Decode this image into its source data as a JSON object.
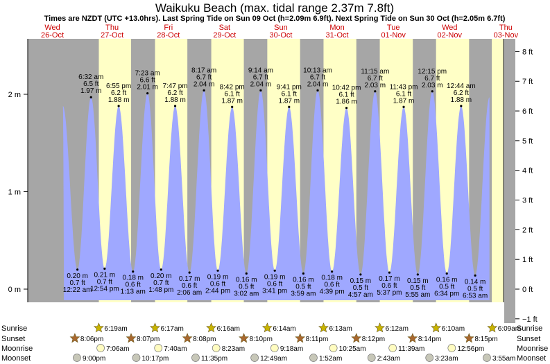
{
  "title": "Waikuku Beach (max. tidal range 2.37m 7.8ft)",
  "subtitle": "Times are NZDT (UTC +13.0hrs). Last Spring Tide on Sun 09 Oct (h=2.09m 6.9ft). Next Spring Tide on Sun 30 Oct (h=2.05m 6.7ft)",
  "colors": {
    "water": "#9fa8ff",
    "day": "#ffffc6",
    "night": "#a6a6a6",
    "day_label": "#cc0000",
    "sun_star": "#c8b400",
    "sunset_star": "#a8682f",
    "moon": "#fffcc0",
    "moonset": "#c7c7b8"
  },
  "days": [
    {
      "name": "Wed",
      "date": "26-Oct"
    },
    {
      "name": "Thu",
      "date": "27-Oct"
    },
    {
      "name": "Fri",
      "date": "28-Oct"
    },
    {
      "name": "Sat",
      "date": "29-Oct"
    },
    {
      "name": "Sun",
      "date": "30-Oct"
    },
    {
      "name": "Mon",
      "date": "31-Oct"
    },
    {
      "name": "Tue",
      "date": "01-Nov"
    },
    {
      "name": "Wed",
      "date": "02-Nov"
    },
    {
      "name": "Thu",
      "date": "03-Nov"
    }
  ],
  "chart_data": {
    "type": "area",
    "ylabel": "",
    "ylim_m": [
      -0.22,
      2.58
    ],
    "y_ticks_m": [
      "0 m",
      "1 m",
      "2 m"
    ],
    "y_ticks_ft": [
      "−1 ft",
      "0 ft",
      "1 ft",
      "2 ft",
      "3 ft",
      "4 ft",
      "5 ft",
      "6 ft",
      "7 ft",
      "8 ft"
    ],
    "tides": [
      {
        "t": 15.0,
        "h": 1.88,
        "type": "high",
        "labels": []
      },
      {
        "t": 21.2,
        "h": 0.2,
        "type": "low",
        "labels": [
          "0.20 m",
          "0.7 ft",
          "12:22 am"
        ]
      },
      {
        "t": 27.0,
        "h": 1.97,
        "type": "high",
        "labels": [
          "6:32 am",
          "6.5 ft",
          "1.97 m"
        ]
      },
      {
        "t": 32.8,
        "h": 0.21,
        "type": "low",
        "labels": [
          "0.21 m",
          "0.7 ft",
          "12:54 pm"
        ]
      },
      {
        "t": 38.8,
        "h": 1.88,
        "type": "high",
        "labels": [
          "6:55 pm",
          "6.2 ft",
          "1.88 m"
        ]
      },
      {
        "t": 44.9,
        "h": 0.18,
        "type": "low",
        "labels": [
          "0.18 m",
          "0.6 ft",
          "1:13 am"
        ]
      },
      {
        "t": 51.1,
        "h": 2.01,
        "type": "high",
        "labels": [
          "7:23 am",
          "6.6 ft",
          "2.01 m"
        ]
      },
      {
        "t": 56.9,
        "h": 0.2,
        "type": "low",
        "labels": [
          "0.20 m",
          "0.7 ft",
          "1:48 pm"
        ]
      },
      {
        "t": 62.9,
        "h": 1.88,
        "type": "high",
        "labels": [
          "7:47 pm",
          "6.2 ft",
          "1.88 m"
        ]
      },
      {
        "t": 69.0,
        "h": 0.17,
        "type": "low",
        "labels": [
          "0.17 m",
          "0.6 ft",
          "2:06 am"
        ]
      },
      {
        "t": 75.2,
        "h": 2.04,
        "type": "high",
        "labels": [
          "8:17 am",
          "6.7 ft",
          "2.04 m"
        ]
      },
      {
        "t": 81.1,
        "h": 0.19,
        "type": "low",
        "labels": [
          "0.19 m",
          "0.6 ft",
          "2:44 pm"
        ]
      },
      {
        "t": 87.2,
        "h": 1.87,
        "type": "high",
        "labels": [
          "8:42 pm",
          "6.1 ft",
          "1.87 m"
        ]
      },
      {
        "t": 93.3,
        "h": 0.16,
        "type": "low",
        "labels": [
          "0.16 m",
          "0.5 ft",
          "3:02 am"
        ]
      },
      {
        "t": 99.4,
        "h": 2.04,
        "type": "high",
        "labels": [
          "9:14 am",
          "6.7 ft",
          "2.04 m"
        ]
      },
      {
        "t": 105.4,
        "h": 0.19,
        "type": "low",
        "labels": [
          "0.19 m",
          "0.6 ft",
          "3:41 pm"
        ]
      },
      {
        "t": 111.5,
        "h": 1.87,
        "type": "high",
        "labels": [
          "9:41 pm",
          "6.1 ft",
          "1.87 m"
        ]
      },
      {
        "t": 117.6,
        "h": 0.16,
        "type": "low",
        "labels": [
          "0.16 m",
          "0.5 ft",
          "3:59 am"
        ]
      },
      {
        "t": 123.7,
        "h": 2.04,
        "type": "high",
        "labels": [
          "10:13 am",
          "6.7 ft",
          "2.04 m"
        ]
      },
      {
        "t": 129.8,
        "h": 0.18,
        "type": "low",
        "labels": [
          "0.18 m",
          "0.6 ft",
          "4:39 pm"
        ]
      },
      {
        "t": 136.0,
        "h": 1.86,
        "type": "high",
        "labels": [
          "10:42 pm",
          "6.1 ft",
          "1.86 m"
        ]
      },
      {
        "t": 142.0,
        "h": 0.15,
        "type": "low",
        "labels": [
          "0.15 m",
          "0.5 ft",
          "4:57 am"
        ]
      },
      {
        "t": 148.2,
        "h": 2.03,
        "type": "high",
        "labels": [
          "11:15 am",
          "6.7 ft",
          "2.03 m"
        ]
      },
      {
        "t": 154.3,
        "h": 0.17,
        "type": "low",
        "labels": [
          "0.17 m",
          "0.6 ft",
          "5:37 pm"
        ]
      },
      {
        "t": 160.4,
        "h": 1.87,
        "type": "high",
        "labels": [
          "11:43 pm",
          "6.1 ft",
          "1.87 m"
        ]
      },
      {
        "t": 166.4,
        "h": 0.15,
        "type": "low",
        "labels": [
          "0.15 m",
          "0.5 ft",
          "5:55 am"
        ]
      },
      {
        "t": 172.6,
        "h": 2.03,
        "type": "high",
        "labels": [
          "12:15 pm",
          "6.7 ft",
          "2.03 m"
        ]
      },
      {
        "t": 178.8,
        "h": 0.16,
        "type": "low",
        "labels": [
          "0.16 m",
          "0.5 ft",
          "6:34 pm"
        ]
      },
      {
        "t": 184.9,
        "h": 1.88,
        "type": "high",
        "labels": [
          "12:44 am",
          "6.2 ft",
          "1.88 m"
        ]
      },
      {
        "t": 190.9,
        "h": 0.14,
        "type": "low",
        "labels": [
          "0.14 m",
          "0.5 ft",
          "6:53 am"
        ]
      },
      {
        "t": 197.0,
        "h": 1.97,
        "type": "high",
        "labels": []
      }
    ],
    "night_bands": [
      [
        -4.0,
        30.3
      ],
      [
        44.1,
        54.3
      ],
      [
        68.1,
        78.3
      ],
      [
        92.2,
        102.2
      ],
      [
        116.2,
        126.2
      ],
      [
        140.2,
        150.2
      ],
      [
        164.3,
        174.2
      ],
      [
        188.3,
        198.0
      ]
    ],
    "first_night_start": 20.1
  },
  "events": {
    "sunrise": {
      "label": "Sunrise",
      "right_label": "Sunrise",
      "items": [
        {
          "t": 30.3,
          "text": "6:19am"
        },
        {
          "t": 54.3,
          "text": "6:17am"
        },
        {
          "t": 78.3,
          "text": "6:16am"
        },
        {
          "t": 102.2,
          "text": "6:14am"
        },
        {
          "t": 126.2,
          "text": "6:13am"
        },
        {
          "t": 150.2,
          "text": "6:12am"
        },
        {
          "t": 174.2,
          "text": "6:10am"
        },
        {
          "t": 198.2,
          "text": "6:09am"
        }
      ]
    },
    "sunset": {
      "label": "Sunset",
      "right_label": "Sunset",
      "items": [
        {
          "t": 20.1,
          "text": "8:06pm"
        },
        {
          "t": 44.1,
          "text": "8:07pm"
        },
        {
          "t": 68.1,
          "text": "8:08pm"
        },
        {
          "t": 92.2,
          "text": "8:10pm"
        },
        {
          "t": 116.2,
          "text": "8:11pm"
        },
        {
          "t": 140.2,
          "text": "8:12pm"
        },
        {
          "t": 164.2,
          "text": "8:14pm"
        },
        {
          "t": 188.3,
          "text": "8:15pm"
        }
      ]
    },
    "moonrise": {
      "label": "Moonrise",
      "right_label": "Moonrise",
      "items": [
        {
          "t": 31.1,
          "text": "7:06am"
        },
        {
          "t": 55.7,
          "text": "7:40am"
        },
        {
          "t": 80.4,
          "text": "8:23am"
        },
        {
          "t": 105.3,
          "text": "9:18am"
        },
        {
          "t": 130.4,
          "text": "10:25am"
        },
        {
          "t": 155.7,
          "text": "11:39am"
        },
        {
          "t": 180.9,
          "text": "12:56pm"
        }
      ]
    },
    "moonset": {
      "label": "Moonset",
      "right_label": "Moonset",
      "items": [
        {
          "t": 21.0,
          "text": "9:00pm"
        },
        {
          "t": 46.3,
          "text": "10:17pm"
        },
        {
          "t": 71.6,
          "text": "11:35pm"
        },
        {
          "t": 96.8,
          "text": "12:49am"
        },
        {
          "t": 121.9,
          "text": "1:52am"
        },
        {
          "t": 146.7,
          "text": "2:43am"
        },
        {
          "t": 171.4,
          "text": "3:23am"
        },
        {
          "t": 195.9,
          "text": "3:55am"
        }
      ]
    }
  }
}
